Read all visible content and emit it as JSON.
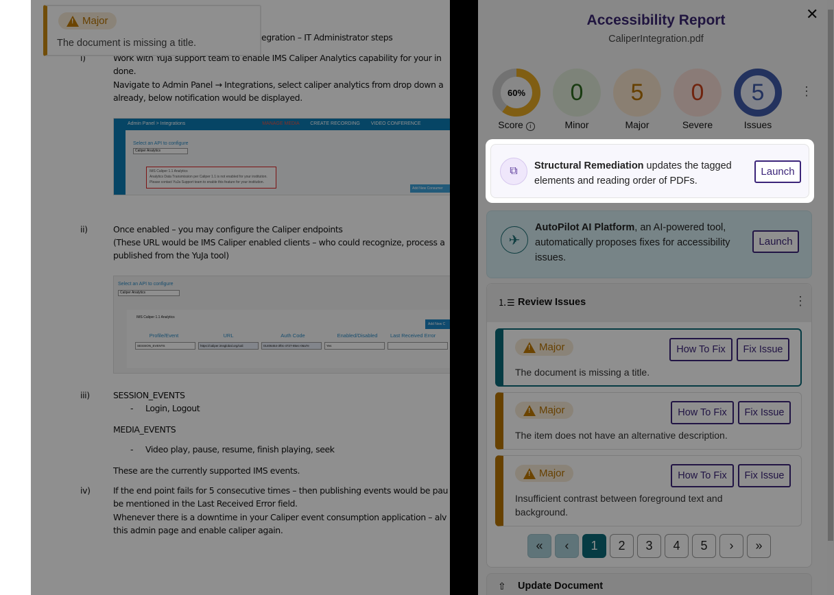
{
  "document": {
    "tooltip": {
      "severity": "Major",
      "message": "The document is missing a title."
    },
    "heading_fragment": "ntegration – IT Administrator steps",
    "items": [
      {
        "marker": "i)",
        "lines": [
          "Work with YuJa support team to enable IMS Caliper Analytics capability for your in",
          "done.",
          "Navigate to Admin Panel → Integrations, select caliper analytics from drop down a",
          "already, below notification would be displayed."
        ]
      },
      {
        "marker": "ii)",
        "lines": [
          "Once enabled – you may configure the Caliper endpoints",
          "(These URL would be IMS Caliper enabled clients – who could recognize, process a",
          "published from the YuJa tool)"
        ]
      },
      {
        "marker": "iii)",
        "lines": [
          "SESSION_EVENTS",
          "Login, Logout",
          "MEDIA_EVENTS",
          "Video play, pause, resume, finish playing, seek",
          "These are the currently supported IMS events."
        ]
      },
      {
        "marker": "iv)",
        "lines": [
          "If the end point fails for 5 consecutive times – then publishing events would be pau",
          "be mentioned in the Last Received Error field.",
          "Whenever there is a downtime in your Caliper event consumption application – alv",
          "this admin page and enable caliper again."
        ]
      }
    ],
    "shot1": {
      "breadcrumb": "Admin Panel > Integrations",
      "nav": [
        "MANAGE MEDIA",
        "CREATE RECORDING",
        "VIDEO CONFERENCE"
      ],
      "select_label": "Select an API to configure",
      "select_value": "Caliper Analytics",
      "alert_title": "IMS Caliper 1.1 Analytics",
      "alert_lines": [
        "Analytics Data Transmission per Caliper 1.1 is not enabled for your institution.",
        "Please contact YuJa Support team to enable this feature for your institution."
      ],
      "add_button": "Add New Consumer"
    },
    "shot2": {
      "select_label": "Select an API to configure",
      "select_value": "Caliper Analytics",
      "section": "IMS Caliper 1.1 Analytics",
      "add_button": "Add New C",
      "columns": [
        "Profile/Event",
        "URL",
        "Auth Code",
        "Enabled/Disabled",
        "Last Received Error"
      ],
      "row": [
        "SESSION_EVENTS",
        "https://caliper.imsglobal.org/cali",
        "01406454-3f0c-4727-85ec-06a7e",
        "Yes",
        ""
      ]
    }
  },
  "panel": {
    "title": "Accessibility Report",
    "filename": "CaliperIntegration.pdf",
    "score": {
      "value": "60%",
      "percent": 60,
      "label": "Score"
    },
    "stats": [
      {
        "value": "0",
        "label": "Minor",
        "color": "#2d6a1f"
      },
      {
        "value": "5",
        "label": "Major",
        "color": "#b77300"
      },
      {
        "value": "0",
        "label": "Severe",
        "color": "#c8401a"
      },
      {
        "value": "5",
        "label": "Issues",
        "color": "#3f5aa8"
      }
    ],
    "structural": {
      "bold": "Structural Remediation",
      "text": " updates the tagged elements and reading order of PDFs.",
      "button": "Launch"
    },
    "autopilot": {
      "bold": "AutoPilot AI Platform",
      "text": ", an AI-powered tool, automatically proposes fixes for accessibility issues.",
      "button": "Launch"
    },
    "review": {
      "title": "Review Issues",
      "issues": [
        {
          "severity": "Major",
          "message": "The document is missing a title.",
          "how": "How To Fix",
          "fix": "Fix Issue"
        },
        {
          "severity": "Major",
          "message": "The item does not have an alternative description.",
          "how": "How To Fix",
          "fix": "Fix Issue"
        },
        {
          "severity": "Major",
          "message": "Insufficient contrast between foreground text and background.",
          "how": "How To Fix",
          "fix": "Fix Issue"
        }
      ],
      "pagination": {
        "first": "«",
        "prev": "‹",
        "pages": [
          "1",
          "2",
          "3",
          "4",
          "5"
        ],
        "current": "1",
        "next": "›",
        "last": "»"
      }
    },
    "next_section": "Update Document"
  }
}
